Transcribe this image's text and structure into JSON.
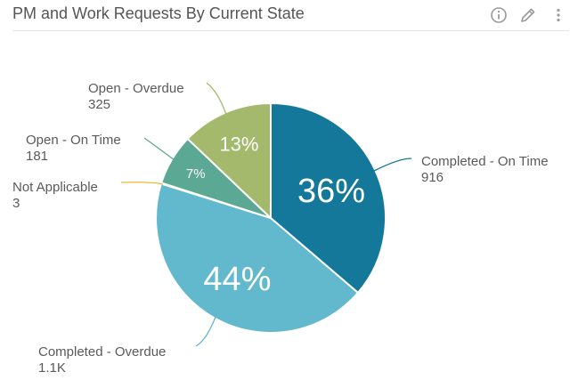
{
  "widget": {
    "title": "PM and Work Requests By Current State",
    "icons": [
      "info-icon",
      "edit-pencil-icon",
      "more-vertical-icon"
    ]
  },
  "chart_data": {
    "type": "pie",
    "title": "PM and Work Requests By Current State",
    "legend": "none",
    "slices": [
      {
        "label": "Completed - On Time",
        "value": 916,
        "value_label": "916",
        "percent_label": "36%",
        "color": "#137899"
      },
      {
        "label": "Completed - Overdue",
        "value": 1100,
        "value_label": "1.1K",
        "percent_label": "44%",
        "color": "#62b8cd"
      },
      {
        "label": "Not Applicable",
        "value": 3,
        "value_label": "3",
        "percent_label": "",
        "color": "#f0b43c"
      },
      {
        "label": "Open - On Time",
        "value": 181,
        "value_label": "181",
        "percent_label": "7%",
        "color": "#5ba894"
      },
      {
        "label": "Open - Overdue",
        "value": 325,
        "value_label": "325",
        "percent_label": "13%",
        "color": "#a4b96c"
      }
    ]
  }
}
